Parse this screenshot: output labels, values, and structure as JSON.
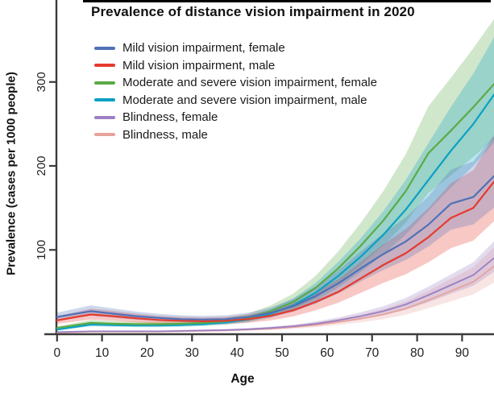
{
  "title": "Prevalence of distance vision impairment in 2020",
  "x_axis_label": "Age",
  "y_axis_label": "Prevalence (cases per 1000 people)",
  "axis_color": "#3b3b3b",
  "tick_label_color": "#222222",
  "chart_data": {
    "type": "line",
    "title": "Prevalence of distance vision impairment in 2020",
    "xlabel": "Age",
    "ylabel": "Prevalence (cases per 1000 people)",
    "xlim": [
      0,
      97.5
    ],
    "ylim": [
      0,
      399
    ],
    "xticks": [
      0,
      10,
      20,
      30,
      40,
      50,
      60,
      70,
      80,
      90
    ],
    "yticks": [
      100,
      200,
      300
    ],
    "grid": false,
    "legend_position": "top-left",
    "bands": "shaded 95% uncertainty intervals around each line",
    "ages": [
      0,
      7.5,
      12.5,
      17.5,
      22.5,
      27.5,
      32.5,
      37.5,
      42.5,
      47.5,
      52.5,
      57.5,
      62.5,
      67.5,
      72.5,
      77.5,
      82.5,
      87.5,
      92.5,
      97.5
    ],
    "series": [
      {
        "name": "Mild vision impairment, female",
        "color": "#4f71b7",
        "values": [
          20,
          27,
          24,
          21,
          19,
          17.5,
          17,
          17.5,
          20,
          25,
          33,
          45,
          60,
          78,
          95,
          110,
          130,
          155,
          163,
          190
        ],
        "lower": [
          16,
          21.6,
          19.2,
          16.8,
          15.2,
          14,
          13.6,
          14,
          16,
          20,
          26.4,
          36,
          48,
          62.4,
          76,
          88,
          104,
          124,
          130.4,
          152
        ],
        "upper": [
          25.2,
          34,
          30.2,
          26.5,
          23.9,
          22.1,
          21.4,
          22.1,
          25.2,
          31.5,
          41.6,
          56.7,
          75.6,
          98.3,
          119.7,
          138.6,
          163.8,
          195.3,
          205.4,
          239.4
        ]
      },
      {
        "name": "Mild vision impairment, male",
        "color": "#e53a2e",
        "values": [
          16,
          23,
          21,
          18.5,
          16.5,
          15.5,
          15,
          15.5,
          17.5,
          21.5,
          28,
          38,
          50,
          66,
          82,
          96,
          115,
          138,
          150,
          184
        ],
        "lower": [
          11.8,
          17,
          15.5,
          13.7,
          12.2,
          11.5,
          11.1,
          11.5,
          13,
          15.9,
          20.7,
          28.1,
          37,
          48.8,
          60.7,
          71,
          85.1,
          102.1,
          111,
          136.2
        ],
        "upper": [
          20.8,
          29.9,
          27.3,
          24.1,
          21.5,
          20.2,
          19.5,
          20.2,
          22.8,
          28,
          36.4,
          49.4,
          65,
          85.8,
          106.6,
          124.8,
          149.5,
          179.4,
          195,
          239.2
        ]
      },
      {
        "name": "Moderate and severe vision impairment, female",
        "color": "#5baa46",
        "values": [
          7,
          13,
          12,
          11.5,
          11.5,
          12,
          13,
          15,
          19,
          27,
          38,
          55,
          78,
          105,
          135,
          170,
          215,
          242,
          270,
          300
        ],
        "lower": [
          5.5,
          10.1,
          9.4,
          9,
          9,
          9.4,
          10.1,
          11.7,
          14.8,
          21.1,
          29.6,
          42.9,
          60.8,
          81.9,
          105.3,
          132.6,
          167.7,
          188.8,
          210.6,
          234
        ],
        "upper": [
          8.8,
          16.4,
          15.1,
          14.5,
          14.5,
          15.1,
          16.4,
          18.9,
          23.9,
          34,
          47.9,
          69.3,
          98.3,
          132.3,
          170.1,
          214.2,
          270.9,
          304.9,
          340.2,
          378
        ]
      },
      {
        "name": "Moderate and severe vision impairment, male",
        "color": "#0aa0c4",
        "values": [
          5,
          11,
          10.5,
          10,
          10,
          10.5,
          11.5,
          13.5,
          17,
          24,
          34,
          49,
          69,
          92,
          118,
          148,
          183,
          218,
          250,
          288
        ],
        "lower": [
          4,
          8.8,
          8.4,
          8,
          8,
          8.4,
          9.2,
          10.8,
          13.6,
          19.2,
          27.2,
          39.2,
          55.2,
          73.6,
          94.4,
          118.4,
          146.4,
          174.4,
          200,
          230.4
        ],
        "upper": [
          6.2,
          13.6,
          13,
          12.4,
          12.4,
          13,
          14.3,
          16.7,
          21.1,
          29.8,
          42.2,
          60.8,
          85.6,
          114.1,
          146.3,
          183.5,
          226.9,
          270.3,
          310,
          357.1
        ]
      },
      {
        "name": "Blindness, female",
        "color": "#9b7fc2",
        "values": [
          2,
          3,
          3,
          3,
          3,
          3.5,
          4,
          4.5,
          5.5,
          7,
          9,
          12,
          16,
          21,
          27,
          35,
          46,
          58,
          70,
          92
        ],
        "lower": [
          1.6,
          2.5,
          2.5,
          2.5,
          2.5,
          2.9,
          3.3,
          3.7,
          4.5,
          5.7,
          7.4,
          9.8,
          13.1,
          17.2,
          22.1,
          28.7,
          37.7,
          47.6,
          57.4,
          75.4
        ],
        "upper": [
          2.4,
          3.7,
          3.7,
          3.7,
          3.7,
          4.3,
          4.9,
          5.5,
          6.7,
          8.5,
          11,
          14.6,
          19.5,
          25.6,
          32.9,
          42.7,
          56.1,
          70.8,
          85.4,
          112.2
        ]
      },
      {
        "name": "Blindness, male",
        "color": "#e7a29c",
        "values": [
          1.5,
          2.5,
          2.5,
          2.5,
          2.5,
          3,
          3.5,
          4,
          5,
          6,
          8,
          10.5,
          14,
          18,
          23,
          30,
          40,
          51,
          62,
          82
        ],
        "lower": [
          1.1,
          1.9,
          1.9,
          1.9,
          1.9,
          2.3,
          2.7,
          3,
          3.8,
          4.6,
          6.1,
          8,
          10.6,
          13.7,
          17.5,
          22.8,
          30.4,
          38.8,
          47.1,
          62.3
        ],
        "upper": [
          1.9,
          3.2,
          3.2,
          3.2,
          3.2,
          3.8,
          4.5,
          5.1,
          6.4,
          7.7,
          10.2,
          13.4,
          17.9,
          23,
          29.4,
          38.4,
          51.2,
          65.3,
          79.4,
          105
        ]
      }
    ]
  }
}
